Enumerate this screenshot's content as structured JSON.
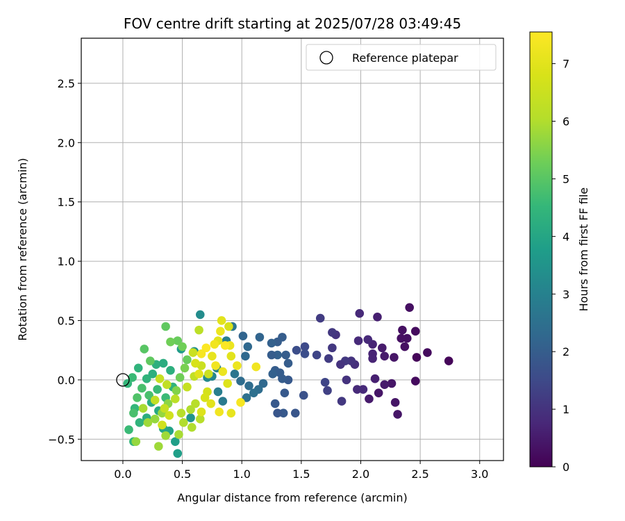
{
  "chart_data": {
    "type": "scatter",
    "title": "FOV centre drift starting at 2025/07/28 03:49:45",
    "xlabel": "Angular distance from reference (arcmin)",
    "ylabel": "Rotation from reference (arcmin)",
    "xlim": [
      -0.35,
      3.2
    ],
    "ylim": [
      -0.68,
      2.88
    ],
    "xticks": [
      "0.0",
      "0.5",
      "1.0",
      "1.5",
      "2.0",
      "2.5",
      "3.0"
    ],
    "yticks": [
      "−0.5",
      "0.0",
      "0.5",
      "1.0",
      "1.5",
      "2.0",
      "2.5"
    ],
    "grid": true,
    "legend": {
      "position": "top-right",
      "label": "Reference platepar",
      "marker": "open-circle"
    },
    "reference_point": {
      "x": 0.0,
      "y": 0.0
    },
    "colorbar": {
      "label": "Hours from first FF file",
      "min": 0,
      "max": 7.55,
      "ticks": [
        "0",
        "1",
        "2",
        "3",
        "4",
        "5",
        "6",
        "7"
      ],
      "colormap": "viridis"
    },
    "series": [
      {
        "color_by": "hours",
        "points": [
          {
            "x": 2.74,
            "y": 0.16,
            "h": 0.1
          },
          {
            "x": 2.56,
            "y": 0.23,
            "h": 0.2
          },
          {
            "x": 2.46,
            "y": 0.41,
            "h": 0.2
          },
          {
            "x": 2.41,
            "y": 0.61,
            "h": 0.3
          },
          {
            "x": 2.35,
            "y": 0.42,
            "h": 0.3
          },
          {
            "x": 2.47,
            "y": 0.19,
            "h": 0.1
          },
          {
            "x": 2.46,
            "y": -0.01,
            "h": 0.2
          },
          {
            "x": 2.31,
            "y": -0.29,
            "h": 0.4
          },
          {
            "x": 2.29,
            "y": -0.19,
            "h": 0.4
          },
          {
            "x": 2.26,
            "y": -0.03,
            "h": 0.4
          },
          {
            "x": 2.2,
            "y": -0.04,
            "h": 0.5
          },
          {
            "x": 2.15,
            "y": -0.11,
            "h": 0.4
          },
          {
            "x": 2.07,
            "y": -0.16,
            "h": 0.5
          },
          {
            "x": 2.12,
            "y": 0.01,
            "h": 0.6
          },
          {
            "x": 2.18,
            "y": 0.27,
            "h": 0.5
          },
          {
            "x": 2.2,
            "y": 0.2,
            "h": 0.5
          },
          {
            "x": 2.28,
            "y": 0.19,
            "h": 0.4
          },
          {
            "x": 2.34,
            "y": 0.35,
            "h": 0.3
          },
          {
            "x": 2.39,
            "y": 0.35,
            "h": 0.3
          },
          {
            "x": 2.37,
            "y": 0.28,
            "h": 0.3
          },
          {
            "x": 2.14,
            "y": 0.53,
            "h": 0.6
          },
          {
            "x": 2.1,
            "y": 0.3,
            "h": 0.7
          },
          {
            "x": 2.1,
            "y": 0.22,
            "h": 0.7
          },
          {
            "x": 2.1,
            "y": 0.18,
            "h": 0.7
          },
          {
            "x": 2.06,
            "y": 0.34,
            "h": 0.8
          },
          {
            "x": 1.99,
            "y": 0.56,
            "h": 0.8
          },
          {
            "x": 1.98,
            "y": 0.33,
            "h": 0.8
          },
          {
            "x": 1.95,
            "y": 0.13,
            "h": 0.9
          },
          {
            "x": 1.92,
            "y": 0.16,
            "h": 1.0
          },
          {
            "x": 1.87,
            "y": 0.16,
            "h": 1.1
          },
          {
            "x": 1.83,
            "y": 0.13,
            "h": 1.0
          },
          {
            "x": 1.88,
            "y": 0.0,
            "h": 1.0
          },
          {
            "x": 1.97,
            "y": -0.08,
            "h": 0.8
          },
          {
            "x": 2.02,
            "y": -0.08,
            "h": 0.8
          },
          {
            "x": 1.84,
            "y": -0.18,
            "h": 1.1
          },
          {
            "x": 1.79,
            "y": 0.38,
            "h": 1.0
          },
          {
            "x": 1.76,
            "y": 0.4,
            "h": 1.1
          },
          {
            "x": 1.76,
            "y": 0.27,
            "h": 1.1
          },
          {
            "x": 1.73,
            "y": 0.18,
            "h": 1.2
          },
          {
            "x": 1.66,
            "y": 0.52,
            "h": 1.2
          },
          {
            "x": 1.63,
            "y": 0.21,
            "h": 1.4
          },
          {
            "x": 1.7,
            "y": -0.02,
            "h": 1.4
          },
          {
            "x": 1.72,
            "y": -0.09,
            "h": 1.3
          },
          {
            "x": 1.53,
            "y": 0.28,
            "h": 1.5
          },
          {
            "x": 1.53,
            "y": 0.22,
            "h": 1.6
          },
          {
            "x": 1.46,
            "y": 0.25,
            "h": 1.6
          },
          {
            "x": 1.52,
            "y": -0.13,
            "h": 1.7
          },
          {
            "x": 1.45,
            "y": -0.28,
            "h": 1.8
          },
          {
            "x": 1.35,
            "y": -0.28,
            "h": 1.9
          },
          {
            "x": 1.3,
            "y": -0.28,
            "h": 1.8
          },
          {
            "x": 1.28,
            "y": -0.2,
            "h": 1.9
          },
          {
            "x": 1.36,
            "y": -0.11,
            "h": 1.9
          },
          {
            "x": 1.39,
            "y": 0.0,
            "h": 1.9
          },
          {
            "x": 1.34,
            "y": 0.01,
            "h": 2.0
          },
          {
            "x": 1.32,
            "y": 0.06,
            "h": 2.0
          },
          {
            "x": 1.28,
            "y": 0.08,
            "h": 2.0
          },
          {
            "x": 1.26,
            "y": 0.05,
            "h": 2.1
          },
          {
            "x": 1.3,
            "y": 0.21,
            "h": 2.1
          },
          {
            "x": 1.37,
            "y": 0.21,
            "h": 2.0
          },
          {
            "x": 1.39,
            "y": 0.14,
            "h": 2.0
          },
          {
            "x": 1.34,
            "y": 0.36,
            "h": 2.0
          },
          {
            "x": 1.3,
            "y": 0.32,
            "h": 2.0
          },
          {
            "x": 1.25,
            "y": 0.31,
            "h": 2.1
          },
          {
            "x": 1.25,
            "y": 0.21,
            "h": 2.0
          },
          {
            "x": 1.15,
            "y": 0.36,
            "h": 2.2
          },
          {
            "x": 1.05,
            "y": 0.28,
            "h": 2.3
          },
          {
            "x": 1.03,
            "y": 0.2,
            "h": 2.3
          },
          {
            "x": 1.01,
            "y": 0.37,
            "h": 2.2
          },
          {
            "x": 1.18,
            "y": -0.03,
            "h": 2.3
          },
          {
            "x": 1.14,
            "y": -0.08,
            "h": 2.4
          },
          {
            "x": 1.1,
            "y": -0.11,
            "h": 2.5
          },
          {
            "x": 1.06,
            "y": -0.05,
            "h": 2.4
          },
          {
            "x": 0.99,
            "y": -0.01,
            "h": 2.4
          },
          {
            "x": 1.04,
            "y": -0.15,
            "h": 2.5
          },
          {
            "x": 0.94,
            "y": 0.05,
            "h": 2.6
          },
          {
            "x": 0.92,
            "y": 0.45,
            "h": 2.7
          },
          {
            "x": 0.87,
            "y": 0.33,
            "h": 2.9
          },
          {
            "x": 0.84,
            "y": -0.18,
            "h": 2.8
          },
          {
            "x": 0.8,
            "y": -0.1,
            "h": 2.9
          },
          {
            "x": 0.79,
            "y": 0.1,
            "h": 3.0
          },
          {
            "x": 0.75,
            "y": 0.03,
            "h": 3.1
          },
          {
            "x": 0.71,
            "y": 0.02,
            "h": 3.2
          },
          {
            "x": 0.65,
            "y": 0.55,
            "h": 3.3
          },
          {
            "x": 0.6,
            "y": 0.24,
            "h": 3.4
          },
          {
            "x": 0.57,
            "y": -0.32,
            "h": 3.5
          },
          {
            "x": 0.49,
            "y": 0.26,
            "h": 3.7
          },
          {
            "x": 0.46,
            "y": -0.62,
            "h": 3.8
          },
          {
            "x": 0.44,
            "y": -0.52,
            "h": 3.8
          },
          {
            "x": 0.39,
            "y": -0.43,
            "h": 3.9
          },
          {
            "x": 0.34,
            "y": -0.41,
            "h": 4.0
          },
          {
            "x": 0.3,
            "y": -0.26,
            "h": 4.1
          },
          {
            "x": 0.24,
            "y": -0.19,
            "h": 4.2
          },
          {
            "x": 0.2,
            "y": -0.32,
            "h": 4.2
          },
          {
            "x": 0.14,
            "y": -0.36,
            "h": 4.4
          },
          {
            "x": 0.09,
            "y": -0.52,
            "h": 4.5
          },
          {
            "x": 0.05,
            "y": -0.42,
            "h": 4.6
          },
          {
            "x": 0.1,
            "y": -0.24,
            "h": 4.5
          },
          {
            "x": 0.04,
            "y": -0.03,
            "h": 4.5
          },
          {
            "x": 0.08,
            "y": 0.02,
            "h": 4.6
          },
          {
            "x": 0.13,
            "y": 0.1,
            "h": 4.4
          },
          {
            "x": 0.2,
            "y": 0.01,
            "h": 4.4
          },
          {
            "x": 0.25,
            "y": 0.05,
            "h": 4.3
          },
          {
            "x": 0.28,
            "y": 0.13,
            "h": 4.3
          },
          {
            "x": 0.34,
            "y": 0.14,
            "h": 4.2
          },
          {
            "x": 0.4,
            "y": 0.08,
            "h": 4.3
          },
          {
            "x": 0.42,
            "y": -0.06,
            "h": 4.4
          },
          {
            "x": 0.36,
            "y": -0.15,
            "h": 4.6
          },
          {
            "x": 0.29,
            "y": -0.08,
            "h": 4.6
          },
          {
            "x": 0.22,
            "y": -0.13,
            "h": 4.8
          },
          {
            "x": 0.16,
            "y": -0.07,
            "h": 4.8
          },
          {
            "x": 0.12,
            "y": -0.15,
            "h": 4.9
          },
          {
            "x": 0.09,
            "y": -0.28,
            "h": 4.8
          },
          {
            "x": 0.18,
            "y": 0.26,
            "h": 5.0
          },
          {
            "x": 0.23,
            "y": 0.16,
            "h": 5.1
          },
          {
            "x": 0.36,
            "y": 0.45,
            "h": 5.1
          },
          {
            "x": 0.46,
            "y": 0.33,
            "h": 5.2
          },
          {
            "x": 0.4,
            "y": 0.32,
            "h": 5.3
          },
          {
            "x": 0.5,
            "y": 0.28,
            "h": 5.3
          },
          {
            "x": 0.54,
            "y": 0.17,
            "h": 5.2
          },
          {
            "x": 0.52,
            "y": 0.1,
            "h": 5.4
          },
          {
            "x": 0.48,
            "y": 0.02,
            "h": 5.3
          },
          {
            "x": 0.45,
            "y": -0.09,
            "h": 5.5
          },
          {
            "x": 0.38,
            "y": -0.2,
            "h": 5.6
          },
          {
            "x": 0.33,
            "y": -0.28,
            "h": 5.7
          },
          {
            "x": 0.27,
            "y": -0.33,
            "h": 5.7
          },
          {
            "x": 0.21,
            "y": -0.36,
            "h": 5.8
          },
          {
            "x": 0.17,
            "y": -0.24,
            "h": 5.9
          },
          {
            "x": 0.11,
            "y": -0.52,
            "h": 5.7
          },
          {
            "x": 0.3,
            "y": -0.56,
            "h": 5.8
          },
          {
            "x": 0.36,
            "y": -0.47,
            "h": 5.8
          },
          {
            "x": 0.47,
            "y": -0.46,
            "h": 5.9
          },
          {
            "x": 0.51,
            "y": -0.36,
            "h": 6.0
          },
          {
            "x": 0.57,
            "y": -0.25,
            "h": 6.0
          },
          {
            "x": 0.61,
            "y": -0.2,
            "h": 6.1
          },
          {
            "x": 0.65,
            "y": -0.33,
            "h": 6.1
          },
          {
            "x": 0.58,
            "y": -0.4,
            "h": 6.0
          },
          {
            "x": 0.49,
            "y": -0.28,
            "h": 6.1
          },
          {
            "x": 0.44,
            "y": -0.16,
            "h": 6.2
          },
          {
            "x": 0.37,
            "y": -0.04,
            "h": 6.3
          },
          {
            "x": 0.31,
            "y": 0.01,
            "h": 6.4
          },
          {
            "x": 0.27,
            "y": -0.17,
            "h": 6.3
          },
          {
            "x": 0.35,
            "y": -0.24,
            "h": 6.4
          },
          {
            "x": 0.33,
            "y": -0.38,
            "h": 6.6
          },
          {
            "x": 0.39,
            "y": -0.3,
            "h": 6.6
          },
          {
            "x": 0.54,
            "y": -0.06,
            "h": 6.4
          },
          {
            "x": 0.6,
            "y": 0.03,
            "h": 6.3
          },
          {
            "x": 0.64,
            "y": 0.42,
            "h": 6.2
          },
          {
            "x": 0.59,
            "y": 0.23,
            "h": 6.5
          },
          {
            "x": 0.66,
            "y": 0.12,
            "h": 6.5
          },
          {
            "x": 0.72,
            "y": 0.05,
            "h": 6.5
          },
          {
            "x": 0.71,
            "y": -0.1,
            "h": 6.7
          },
          {
            "x": 0.69,
            "y": -0.15,
            "h": 6.8
          },
          {
            "x": 0.66,
            "y": -0.27,
            "h": 6.9
          },
          {
            "x": 0.74,
            "y": -0.2,
            "h": 7.0
          },
          {
            "x": 0.81,
            "y": -0.27,
            "h": 7.3
          },
          {
            "x": 0.91,
            "y": -0.28,
            "h": 7.1
          },
          {
            "x": 0.99,
            "y": -0.19,
            "h": 7.4
          },
          {
            "x": 1.12,
            "y": 0.11,
            "h": 7.3
          },
          {
            "x": 0.96,
            "y": 0.12,
            "h": 7.2
          },
          {
            "x": 0.91,
            "y": 0.2,
            "h": 7.0
          },
          {
            "x": 0.9,
            "y": 0.29,
            "h": 7.2
          },
          {
            "x": 0.86,
            "y": 0.29,
            "h": 7.5
          },
          {
            "x": 0.82,
            "y": 0.41,
            "h": 7.2
          },
          {
            "x": 0.83,
            "y": 0.5,
            "h": 7.0
          },
          {
            "x": 0.89,
            "y": 0.45,
            "h": 6.8
          },
          {
            "x": 0.8,
            "y": 0.33,
            "h": 7.0
          },
          {
            "x": 0.77,
            "y": 0.3,
            "h": 7.3
          },
          {
            "x": 0.7,
            "y": 0.27,
            "h": 7.5
          },
          {
            "x": 0.66,
            "y": 0.22,
            "h": 7.4
          },
          {
            "x": 0.75,
            "y": 0.2,
            "h": 7.1
          },
          {
            "x": 0.78,
            "y": 0.12,
            "h": 7.3
          },
          {
            "x": 0.84,
            "y": 0.07,
            "h": 7.2
          },
          {
            "x": 0.88,
            "y": -0.03,
            "h": 6.9
          },
          {
            "x": 0.64,
            "y": 0.05,
            "h": 7.0
          },
          {
            "x": 0.61,
            "y": 0.14,
            "h": 6.8
          }
        ]
      }
    ]
  }
}
